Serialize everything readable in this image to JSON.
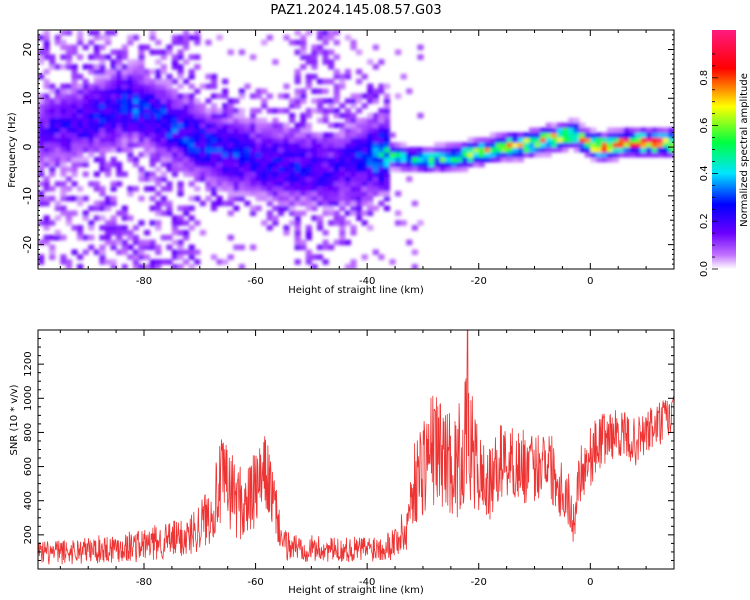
{
  "figure_title": "PAZ1.2024.145.08.57.G03",
  "chart_data": [
    {
      "type": "heatmap",
      "title": "PAZ1.2024.145.08.57.G03",
      "xlabel": "Height of straight line (km)",
      "ylabel": "Frequency (Hz)",
      "xlim": [
        -99,
        15
      ],
      "ylim": [
        -25,
        24
      ],
      "x_ticks": [
        -80,
        -60,
        -40,
        -20,
        0
      ],
      "y_ticks": [
        -20,
        -10,
        0,
        10,
        20
      ],
      "colorbar": {
        "label": "Normalized spectral amplitude",
        "range": [
          0,
          1
        ],
        "ticks": [
          0.0,
          0.2,
          0.4,
          0.6,
          0.8
        ],
        "colors": [
          "#ffffff",
          "#7a00ff",
          "#0000ff",
          "#00e5ff",
          "#00ff40",
          "#ffff00",
          "#ff0000",
          "#ff0080"
        ]
      },
      "ridge": {
        "x": [
          -99,
          -90,
          -82,
          -76,
          -70,
          -64,
          -58,
          -52,
          -46,
          -40,
          -36,
          -32,
          -28,
          -24,
          -20,
          -16,
          -12,
          -8,
          -5,
          -3,
          -1,
          2,
          6,
          10,
          15
        ],
        "y": [
          3,
          6,
          9,
          5,
          1,
          -1,
          -3,
          -4,
          -5,
          -2,
          -1.5,
          -2.5,
          -2.5,
          -2,
          -1,
          0,
          0.5,
          1.5,
          2,
          3,
          1,
          0,
          1,
          1,
          1
        ],
        "amplitude": [
          0.18,
          0.25,
          0.3,
          0.3,
          0.28,
          0.28,
          0.26,
          0.24,
          0.22,
          0.3,
          0.45,
          0.45,
          0.5,
          0.55,
          0.6,
          0.62,
          0.68,
          0.72,
          0.7,
          0.6,
          0.7,
          0.82,
          0.85,
          0.88,
          0.85
        ]
      }
    },
    {
      "type": "line",
      "xlabel": "Height of straight line (km)",
      "ylabel": "SNR (10 * v/v)",
      "xlim": [
        -99,
        15
      ],
      "ylim": [
        0,
        1400
      ],
      "x_ticks": [
        -80,
        -60,
        -40,
        -20,
        0
      ],
      "y_ticks": [
        200,
        400,
        600,
        800,
        1000,
        1200
      ],
      "color": "#ee3333",
      "envelope": {
        "x": [
          -99,
          -90,
          -80,
          -72,
          -68,
          -66,
          -62,
          -58,
          -55,
          -50,
          -45,
          -40,
          -36,
          -33,
          -32,
          -30,
          -28,
          -26,
          -24,
          -22,
          -20,
          -18,
          -16,
          -14,
          -12,
          -10,
          -8,
          -6,
          -4,
          -3,
          -2,
          0,
          2,
          5,
          8,
          11,
          15
        ],
        "mean": [
          90,
          110,
          140,
          190,
          330,
          520,
          360,
          560,
          140,
          120,
          110,
          120,
          140,
          220,
          460,
          620,
          720,
          660,
          600,
          780,
          560,
          480,
          640,
          620,
          600,
          580,
          680,
          520,
          420,
          260,
          560,
          660,
          760,
          800,
          740,
          820,
          900
        ],
        "spread": [
          70,
          80,
          100,
          120,
          180,
          260,
          220,
          240,
          90,
          80,
          70,
          80,
          90,
          140,
          220,
          320,
          350,
          300,
          320,
          380,
          260,
          220,
          220,
          220,
          220,
          200,
          220,
          200,
          180,
          120,
          180,
          180,
          160,
          140,
          140,
          140,
          140
        ]
      },
      "peak": {
        "x": -22,
        "y": 1400
      }
    }
  ]
}
